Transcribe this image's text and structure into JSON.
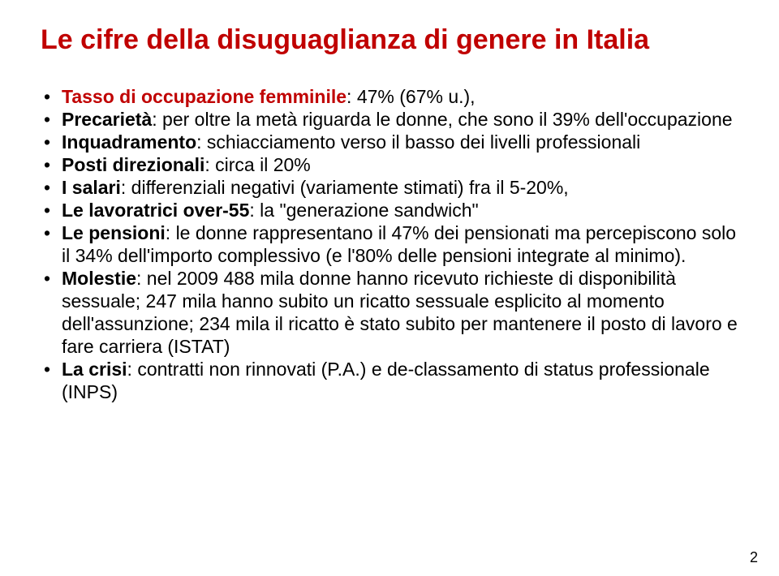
{
  "title_color": "#c00000",
  "text_color": "#000000",
  "title_fontsize": 34,
  "body_fontsize": 23,
  "title": "Le cifre della disuguaglianza di genere in Italia",
  "page_number": "2",
  "bullets": [
    {
      "lead": "Tasso di occupazione femminile",
      "lead_color": "#c00000",
      "rest": ": 47% (67% u.),"
    },
    {
      "lead": "Precarietà",
      "lead_color": "#000000",
      "rest": ": per oltre la metà riguarda le donne, che sono il 39% dell'occupazione"
    },
    {
      "lead": "Inquadramento",
      "lead_color": "#000000",
      "rest": ": schiacciamento verso il basso dei livelli professionali"
    },
    {
      "lead": "Posti direzionali",
      "lead_color": "#000000",
      "rest": ": circa il 20%"
    },
    {
      "lead": "I salari",
      "lead_color": "#000000",
      "rest": ": differenziali negativi (variamente stimati) fra il 5-20%,"
    },
    {
      "lead": "Le lavoratrici over-55",
      "lead_color": "#000000",
      "rest": ": la \"generazione sandwich\""
    },
    {
      "lead": "Le pensioni",
      "lead_color": "#000000",
      "rest": ": le donne rappresentano il 47% dei pensionati ma percepiscono solo il 34% dell'importo complessivo (e l'80% delle pensioni integrate al minimo)."
    },
    {
      "lead": "Molestie",
      "lead_color": "#000000",
      "rest": ": nel 2009 488 mila donne hanno ricevuto richieste di disponibilità sessuale; 247 mila hanno subito un ricatto sessuale esplicito al momento dell'assunzione; 234 mila il ricatto è stato subito per mantenere il posto di lavoro e fare carriera (ISTAT)"
    },
    {
      "lead": "La crisi",
      "lead_color": "#000000",
      "rest": ": contratti non rinnovati (P.A.) e de-classamento di status professionale (INPS)"
    }
  ]
}
